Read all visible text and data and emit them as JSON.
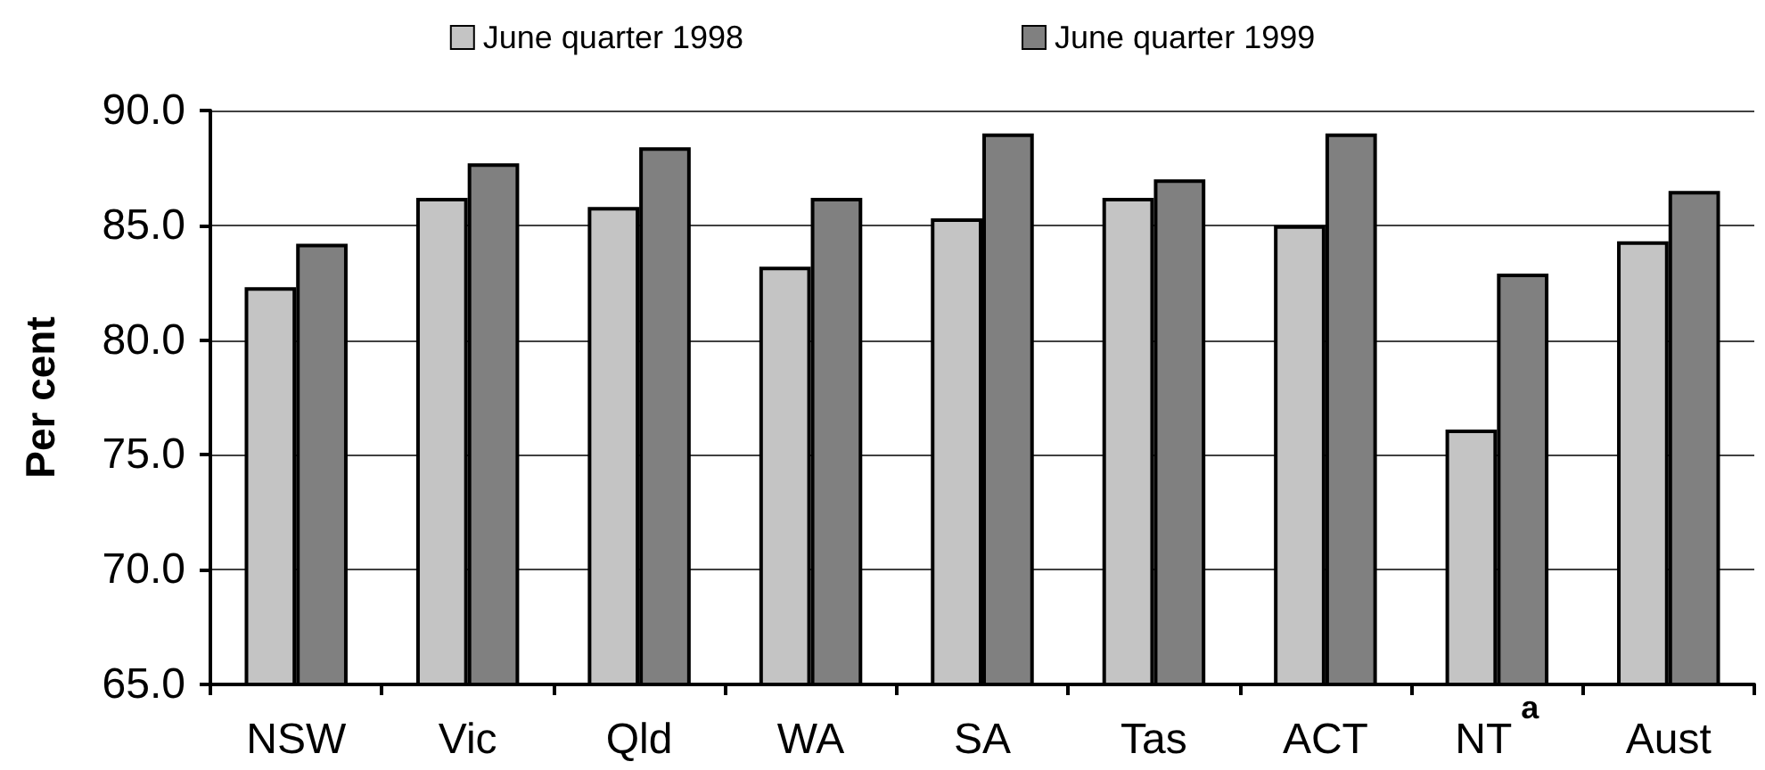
{
  "chart_data": {
    "type": "bar",
    "ylabel": "Per cent",
    "categories": [
      "NSW",
      "Vic",
      "Qld",
      "WA",
      "SA",
      "Tas",
      "ACT",
      "NT$^{a}$",
      "Aust"
    ],
    "series": [
      {
        "name": "June quarter 1998",
        "color": "#c4c4c4",
        "values": [
          82.3,
          86.2,
          85.8,
          83.2,
          85.3,
          86.2,
          85.0,
          76.1,
          84.3
        ]
      },
      {
        "name": "June quarter 1999",
        "color": "#808080",
        "values": [
          84.2,
          87.7,
          88.4,
          86.2,
          89.0,
          87.0,
          89.0,
          82.9,
          86.5
        ]
      }
    ],
    "ylim": [
      65,
      90
    ],
    "yticks": [
      {
        "value": 65,
        "label": "65.0"
      },
      {
        "value": 70,
        "label": "70.0"
      },
      {
        "value": 75,
        "label": "75.0"
      },
      {
        "value": 80,
        "label": "80.0"
      },
      {
        "value": 85,
        "label": "85.0"
      },
      {
        "value": 90,
        "label": "90.0"
      }
    ],
    "grid": "y",
    "legend": "top"
  }
}
